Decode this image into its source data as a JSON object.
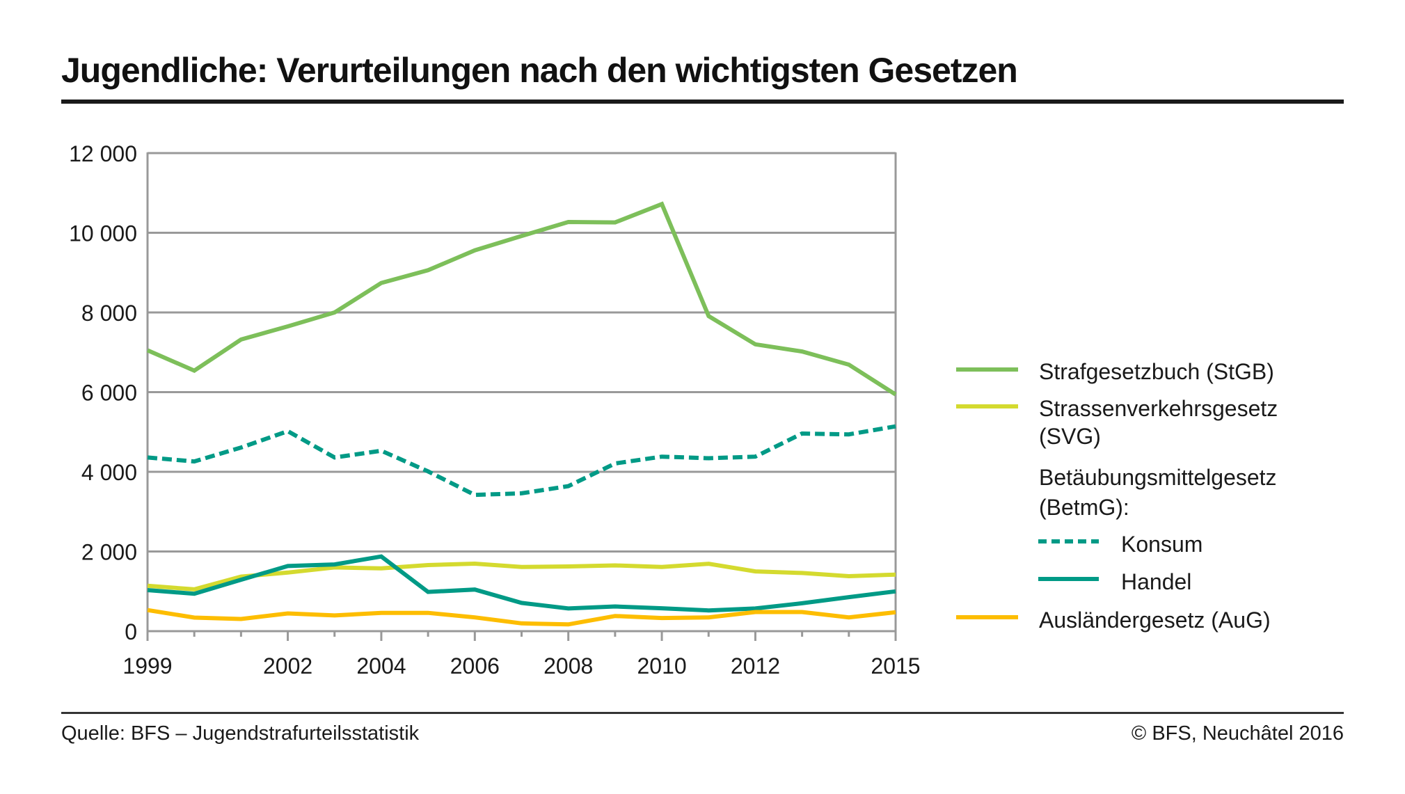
{
  "header": {
    "title": "Jugendliche: Verurteilungen nach den wichtigsten Gesetzen"
  },
  "footer": {
    "source": "Quelle: BFS – Jugendstrafurteilsstatistik",
    "copyright": "© BFS, Neuchâtel 2016"
  },
  "chart_data": {
    "type": "line",
    "title": "Jugendliche: Verurteilungen nach den wichtigsten Gesetzen",
    "xlabel": "",
    "ylabel": "",
    "x": [
      1999,
      2000,
      2001,
      2002,
      2003,
      2004,
      2005,
      2006,
      2007,
      2008,
      2009,
      2010,
      2011,
      2012,
      2013,
      2014,
      2015
    ],
    "xlim": [
      1999,
      2015
    ],
    "ylim": [
      0,
      12000
    ],
    "grid": true,
    "legend_position": "right",
    "x_tick_labels": [
      "1999",
      "2002",
      "2004",
      "2006",
      "2008",
      "2010",
      "2012",
      "2015"
    ],
    "x_tick_label_years": [
      1999,
      2002,
      2004,
      2006,
      2008,
      2010,
      2012,
      2015
    ],
    "y_ticks": [
      0,
      2000,
      4000,
      6000,
      8000,
      10000,
      12000
    ],
    "y_tick_labels": [
      "0",
      "2 000",
      "4 000",
      "6 000",
      "8 000",
      "10 000",
      "12 000"
    ],
    "legend_group_label": "Betäubungsmittelgesetz (BetmG):",
    "series": [
      {
        "name": "Strafgesetzbuch (StGB)",
        "color": "#7dbf5a",
        "dash": "solid",
        "legend_indent": false,
        "values": [
          7050,
          6540,
          7320,
          7650,
          8000,
          8740,
          9060,
          9560,
          9920,
          10270,
          10260,
          10720,
          7910,
          7200,
          7020,
          6690,
          5940
        ]
      },
      {
        "name": "Strassenverkehrsgesetz (SVG)",
        "color": "#d4da2f",
        "dash": "solid",
        "legend_indent": false,
        "values": [
          1140,
          1050,
          1370,
          1470,
          1600,
          1575,
          1660,
          1695,
          1610,
          1625,
          1650,
          1610,
          1690,
          1500,
          1460,
          1380,
          1420
        ]
      },
      {
        "name": "Konsum",
        "color": "#009a86",
        "dash": "dashed",
        "legend_indent": true,
        "values": [
          4360,
          4260,
          4610,
          5020,
          4360,
          4530,
          4010,
          3420,
          3460,
          3640,
          4210,
          4380,
          4340,
          4380,
          4960,
          4940,
          5140
        ]
      },
      {
        "name": "Handel",
        "color": "#009a86",
        "dash": "solid",
        "legend_indent": true,
        "values": [
          1030,
          940,
          1290,
          1635,
          1675,
          1875,
          985,
          1045,
          710,
          570,
          620,
          575,
          520,
          570,
          700,
          855,
          1000
        ]
      },
      {
        "name": "Ausländergesetz (AuG)",
        "color": "#fdbd00",
        "dash": "solid",
        "legend_indent": false,
        "values": [
          530,
          340,
          305,
          445,
          395,
          460,
          460,
          345,
          195,
          170,
          380,
          330,
          345,
          480,
          480,
          345,
          475
        ]
      }
    ]
  }
}
